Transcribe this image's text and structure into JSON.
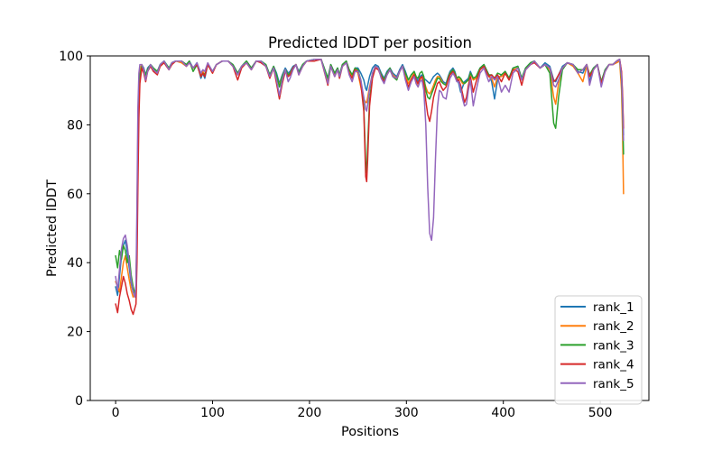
{
  "figure": {
    "background_color": "#ffffff",
    "spine_color": "#000000"
  },
  "chart_data": {
    "type": "line",
    "title": "Predicted lDDT per position",
    "xlabel": "Positions",
    "ylabel": "Predicted lDDT",
    "xlim": [
      -26.2,
      550.2
    ],
    "ylim": [
      0,
      100
    ],
    "xticks": [
      0,
      100,
      200,
      300,
      400,
      500
    ],
    "yticks": [
      0,
      20,
      40,
      60,
      80,
      100
    ],
    "grid": false,
    "legend": {
      "position": "lower-right",
      "border_color": "#cccccc",
      "background_color": "rgba(255,255,255,0.85)"
    },
    "x": [
      0,
      2,
      4,
      6,
      8,
      10,
      12,
      14,
      16,
      18,
      20,
      21,
      22,
      23,
      24,
      25,
      27,
      29,
      31,
      33,
      36,
      39,
      43,
      46,
      50,
      55,
      58,
      62,
      68,
      73,
      76,
      80,
      84,
      88,
      90,
      92,
      95,
      100,
      104,
      110,
      116,
      121,
      126,
      130,
      135,
      140,
      145,
      150,
      155,
      159,
      163,
      166,
      169,
      172,
      175,
      178,
      180,
      183,
      186,
      189,
      193,
      197,
      205,
      212,
      219,
      222,
      226,
      229,
      231,
      234,
      238,
      241,
      244,
      247,
      250,
      253,
      256,
      258,
      259,
      260,
      262,
      265,
      268,
      271,
      274,
      277,
      280,
      283,
      286,
      290,
      293,
      296,
      299,
      302,
      305,
      308,
      310,
      312,
      314,
      316,
      318,
      320,
      322,
      324,
      326,
      328,
      330,
      332,
      334,
      336,
      338,
      341,
      343,
      345,
      348,
      350,
      352,
      354,
      356,
      358,
      360,
      362,
      364,
      366,
      369,
      372,
      376,
      380,
      385,
      388,
      391,
      394,
      398,
      402,
      406,
      410,
      415,
      419,
      423,
      428,
      432,
      438,
      443,
      448,
      452,
      454,
      457,
      461,
      466,
      472,
      477,
      482,
      486,
      489,
      493,
      497,
      501,
      505,
      509,
      513,
      517,
      520,
      522,
      523,
      524
    ],
    "series": [
      {
        "name": "rank_1",
        "color": "#1f77b4",
        "y": [
          33,
          30.5,
          36,
          42,
          45,
          46.5,
          43,
          38.5,
          34,
          31.5,
          30,
          32,
          50,
          75,
          90,
          95.5,
          97.5,
          96.5,
          94.5,
          96.5,
          97.5,
          96.5,
          95.5,
          97.5,
          98.5,
          96.5,
          98,
          98.5,
          98.5,
          97.5,
          98.5,
          96.5,
          98,
          93.5,
          95,
          93.5,
          97.5,
          95.5,
          97.5,
          98.5,
          98.5,
          97.5,
          95,
          97,
          98.5,
          96.5,
          98.5,
          98.5,
          97.5,
          94.5,
          97,
          95,
          92,
          94.5,
          96.5,
          95,
          95.5,
          97,
          97.5,
          95.5,
          97.5,
          98.5,
          99,
          99,
          93.5,
          97.5,
          95,
          96.5,
          94.5,
          97.5,
          98.5,
          96,
          94.5,
          96.5,
          96.5,
          95,
          93,
          90.5,
          90,
          91.5,
          94,
          96.5,
          97.5,
          97,
          95,
          93.5,
          95.5,
          96.5,
          95,
          94,
          96,
          97.5,
          95.5,
          93,
          94.5,
          95.5,
          94,
          92.5,
          94,
          94.5,
          93.5,
          93,
          92.5,
          92,
          93,
          94,
          94.5,
          95,
          94.5,
          93.5,
          92.5,
          92,
          94,
          95.5,
          96.5,
          95.5,
          93.5,
          92,
          89.5,
          91,
          92.5,
          93,
          93.5,
          95.5,
          93.5,
          94,
          96.5,
          97.5,
          94.5,
          92.5,
          87.5,
          93,
          94.5,
          95.5,
          93.5,
          96.5,
          97,
          93.5,
          96.5,
          98,
          98.5,
          96.5,
          98,
          97,
          93,
          92.5,
          94.5,
          97,
          98,
          97.5,
          95.5,
          95,
          97.5,
          92.5,
          96.5,
          97.5,
          92.5,
          96,
          97.5,
          97.5,
          98.5,
          99,
          95,
          88,
          77
        ]
      },
      {
        "name": "rank_2",
        "color": "#ff7f0e",
        "y": [
          34.5,
          33,
          31.5,
          36,
          40,
          42,
          38.5,
          35,
          32,
          30,
          31,
          33,
          52,
          78,
          91,
          96,
          97.5,
          96,
          94,
          96,
          97.5,
          96,
          95,
          97,
          98,
          96,
          97.5,
          98.5,
          98,
          97,
          98,
          96.5,
          97.5,
          94.5,
          95.5,
          94.5,
          97.5,
          95,
          97.5,
          98.5,
          98.5,
          97,
          94.5,
          97,
          98,
          96,
          98.5,
          98.5,
          97,
          94,
          96.5,
          94,
          91.5,
          94,
          96,
          94.5,
          95,
          96.5,
          97.5,
          95,
          97,
          98.5,
          98.5,
          99,
          93,
          97,
          94.5,
          96,
          94.5,
          97,
          98,
          95.5,
          94,
          96,
          95,
          91,
          87.5,
          86.5,
          86.5,
          88,
          91,
          95,
          97,
          96.5,
          94.5,
          93,
          95,
          96,
          94.5,
          93.5,
          95.5,
          97,
          94.5,
          92,
          93.5,
          95,
          92.5,
          91,
          93,
          94,
          93,
          91,
          89.5,
          89,
          90,
          91.5,
          93,
          94,
          94,
          93,
          92,
          91.5,
          93.5,
          95,
          96,
          95,
          93.5,
          93.5,
          93,
          92,
          92,
          92.5,
          93,
          95,
          93,
          93.5,
          96,
          97,
          94,
          93.5,
          91,
          94,
          94,
          95,
          93,
          96,
          96.5,
          93.5,
          96,
          97.5,
          98.5,
          96.5,
          97.5,
          96,
          88,
          86,
          92,
          96.5,
          98,
          97,
          95,
          92.5,
          97,
          94,
          96,
          97.5,
          92,
          95.5,
          97.5,
          97.5,
          98,
          98.5,
          90,
          78,
          60
        ]
      },
      {
        "name": "rank_3",
        "color": "#2ca02c",
        "y": [
          42,
          38.5,
          43.5,
          41,
          45,
          43.5,
          40,
          42,
          36.5,
          33,
          31,
          32,
          48,
          72,
          88,
          94.5,
          97,
          96,
          94.5,
          96,
          97.5,
          96.5,
          95.5,
          97.5,
          98.5,
          96.5,
          98,
          98.5,
          98.5,
          97.5,
          98.5,
          95.5,
          97.5,
          94,
          95,
          94.5,
          97.5,
          95.5,
          97.5,
          98.5,
          98.5,
          97.5,
          95,
          97,
          98.5,
          96.5,
          98.5,
          98.5,
          97.5,
          94.5,
          97,
          94.5,
          91,
          94,
          96,
          94.5,
          95,
          96.5,
          97.5,
          95,
          97.5,
          98.5,
          99,
          99,
          93.5,
          97.5,
          95,
          96.5,
          94.5,
          97.5,
          98.5,
          96,
          94.5,
          96.5,
          96,
          93,
          85,
          69,
          66,
          74,
          87,
          94.5,
          97,
          96.5,
          94.5,
          93,
          95,
          96.5,
          94,
          93,
          95.5,
          97,
          95,
          93,
          94.5,
          95.5,
          94,
          93.5,
          95,
          95.5,
          94,
          90,
          88,
          87.5,
          89,
          90.5,
          92,
          93.5,
          93.5,
          92.5,
          92,
          91.5,
          93.5,
          95,
          96,
          95,
          93.5,
          94,
          93.5,
          92.5,
          92,
          92.5,
          93,
          95,
          93.5,
          94,
          96.5,
          97.5,
          94.5,
          94.5,
          93.5,
          95,
          94.5,
          95.5,
          93.5,
          96.5,
          97,
          93.5,
          96.5,
          98,
          98.5,
          96.5,
          97.5,
          95,
          80.5,
          79,
          88,
          96,
          98,
          97.5,
          96,
          96,
          97.5,
          94.5,
          96.5,
          97.5,
          92.5,
          96,
          97.5,
          97.5,
          98.5,
          99,
          93,
          84,
          71.5
        ]
      },
      {
        "name": "rank_4",
        "color": "#d62728",
        "y": [
          28,
          25.5,
          30,
          33,
          36,
          34,
          31,
          29,
          26.5,
          25,
          27,
          28,
          40,
          62,
          82,
          92,
          96.5,
          95,
          92.5,
          95.5,
          97,
          95.5,
          94.5,
          97,
          98,
          96,
          97.5,
          98.5,
          98.5,
          97,
          98,
          96.5,
          97.5,
          94,
          95,
          94,
          97.5,
          95,
          97.5,
          98.5,
          98.5,
          97,
          93,
          96.5,
          98,
          96,
          98.5,
          98,
          97,
          93.5,
          96.5,
          92,
          87.5,
          92,
          95.5,
          94,
          94.5,
          96.5,
          97.5,
          94.5,
          97,
          98.5,
          98.5,
          99,
          91.5,
          97,
          94,
          96,
          93.5,
          97,
          98,
          95,
          93.5,
          96,
          95.5,
          92,
          84,
          65,
          63.5,
          70,
          85.5,
          93.5,
          96.5,
          96,
          94,
          92.5,
          94.5,
          96,
          94,
          93.5,
          95.5,
          97,
          93.5,
          91,
          93,
          94.5,
          93,
          92,
          93.5,
          94,
          92,
          87,
          83,
          81,
          84,
          88,
          90,
          92,
          92.5,
          91,
          90,
          91,
          93,
          94.5,
          95.5,
          94.5,
          93,
          93,
          91.5,
          89,
          86.5,
          88,
          91.5,
          94,
          89.5,
          92.5,
          96,
          97,
          94,
          94.5,
          93.5,
          94.5,
          92.5,
          95,
          93,
          96,
          95.5,
          91.5,
          96,
          97.5,
          98,
          96.5,
          97.5,
          96.5,
          92.5,
          93,
          94.5,
          96.5,
          98,
          97.5,
          95,
          96,
          97.5,
          94,
          96,
          97.5,
          92,
          95.5,
          97.5,
          97.5,
          98.5,
          99,
          95.5,
          89,
          79
        ]
      },
      {
        "name": "rank_5",
        "color": "#9467bd",
        "y": [
          36,
          32,
          38,
          44,
          47,
          48,
          45,
          40,
          35,
          31.5,
          30,
          34,
          58,
          85,
          95,
          97.5,
          97.5,
          96,
          93,
          95.5,
          97.5,
          96,
          95,
          97.5,
          98.5,
          96,
          98,
          98.5,
          98.5,
          97,
          98,
          96.5,
          98,
          95,
          96,
          95.5,
          98,
          95.5,
          97.5,
          98.5,
          98.5,
          97,
          94.5,
          97,
          98,
          96,
          98.5,
          98.5,
          97,
          94,
          96.5,
          93,
          88.5,
          93,
          96,
          92.5,
          93.5,
          96,
          97.5,
          94.5,
          97,
          98.5,
          99,
          99,
          92,
          97,
          94,
          96,
          94,
          97,
          98,
          94.5,
          92.5,
          95.5,
          95.5,
          93,
          88,
          84.5,
          84,
          86,
          90.5,
          95,
          97,
          96.5,
          93.5,
          92,
          94.5,
          96,
          94,
          93.5,
          95.5,
          97,
          93,
          90,
          92.5,
          94,
          92,
          91,
          92.5,
          93,
          90,
          80,
          62,
          48.5,
          46.5,
          53,
          70,
          85,
          90,
          89.5,
          88,
          87.5,
          91,
          93.5,
          95,
          94,
          92.5,
          92.5,
          90.5,
          87.5,
          85.5,
          86,
          90,
          93,
          85.5,
          90,
          95,
          96.5,
          92.5,
          94,
          93,
          94,
          89.5,
          91.5,
          89.5,
          95,
          96.5,
          93,
          96,
          97.5,
          98.5,
          96.5,
          97.5,
          96.5,
          91.5,
          91,
          93,
          96.5,
          98,
          97.5,
          95,
          96,
          97.5,
          91.5,
          96,
          97.5,
          91,
          95.5,
          97.5,
          97.5,
          98.5,
          99,
          94,
          86,
          75.5
        ]
      }
    ]
  }
}
